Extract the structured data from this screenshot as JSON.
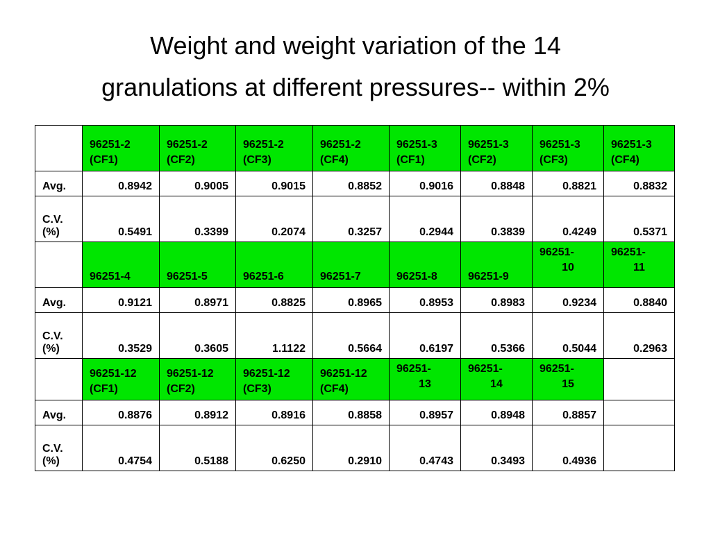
{
  "title": {
    "line1": "Weight and weight variation of the 14",
    "line2": "granulations at different pressures-- within 2%"
  },
  "colors": {
    "header_bg": "#00e600"
  },
  "blocks": [
    {
      "headers": [
        {
          "a": "96251-2",
          "b": "(CF1)"
        },
        {
          "a": "96251-2",
          "b": "(CF2)"
        },
        {
          "a": "96251-2",
          "b": "(CF3)"
        },
        {
          "a": "96251-2",
          "b": "(CF4)"
        },
        {
          "a": "96251-3",
          "b": "(CF1)"
        },
        {
          "a": "96251-3",
          "b": "(CF2)"
        },
        {
          "a": "96251-3",
          "b": "(CF3)"
        },
        {
          "a": "96251-3",
          "b": "(CF4)"
        }
      ],
      "avg_label": "Avg.",
      "avg": [
        "0.8942",
        "0.9005",
        "0.9015",
        "0.8852",
        "0.9016",
        "0.8848",
        "0.8821",
        "0.8832"
      ],
      "cv_label_a": "C.V.",
      "cv_label_b": "(%)",
      "cv": [
        "0.5491",
        "0.3399",
        "0.2074",
        "0.3257",
        "0.2944",
        "0.3839",
        "0.4249",
        "0.5371"
      ]
    },
    {
      "headers": [
        {
          "a": "96251-4",
          "b": ""
        },
        {
          "a": "96251-5",
          "b": ""
        },
        {
          "a": "96251-6",
          "b": ""
        },
        {
          "a": "96251-7",
          "b": ""
        },
        {
          "a": "96251-8",
          "b": ""
        },
        {
          "a": "96251-9",
          "b": ""
        },
        {
          "a": "96251-",
          "b": "10"
        },
        {
          "a": "96251-",
          "b": "11"
        }
      ],
      "avg_label": "Avg.",
      "avg": [
        "0.9121",
        "0.8971",
        "0.8825",
        "0.8965",
        "0.8953",
        "0.8983",
        "0.9234",
        "0.8840"
      ],
      "cv_label_a": "C.V.",
      "cv_label_b": "(%)",
      "cv": [
        "0.3529",
        "0.3605",
        "1.1122",
        "0.5664",
        "0.6197",
        "0.5366",
        "0.5044",
        "0.2963"
      ]
    },
    {
      "headers": [
        {
          "a": "96251-12",
          "b": "(CF1)"
        },
        {
          "a": "96251-12",
          "b": "(CF2)"
        },
        {
          "a": "96251-12",
          "b": "(CF3)"
        },
        {
          "a": "96251-12",
          "b": "(CF4)"
        },
        {
          "a": "96251-",
          "b": "13"
        },
        {
          "a": "96251-",
          "b": "14"
        },
        {
          "a": "96251-",
          "b": "15"
        }
      ],
      "avg_label": "Avg.",
      "avg": [
        "0.8876",
        "0.8912",
        "0.8916",
        "0.8858",
        "0.8957",
        "0.8948",
        "0.8857"
      ],
      "cv_label_a": "C.V.",
      "cv_label_b": "(%)",
      "cv": [
        "0.4754",
        "0.5188",
        "0.6250",
        "0.2910",
        "0.4743",
        "0.3493",
        "0.4936"
      ]
    }
  ]
}
